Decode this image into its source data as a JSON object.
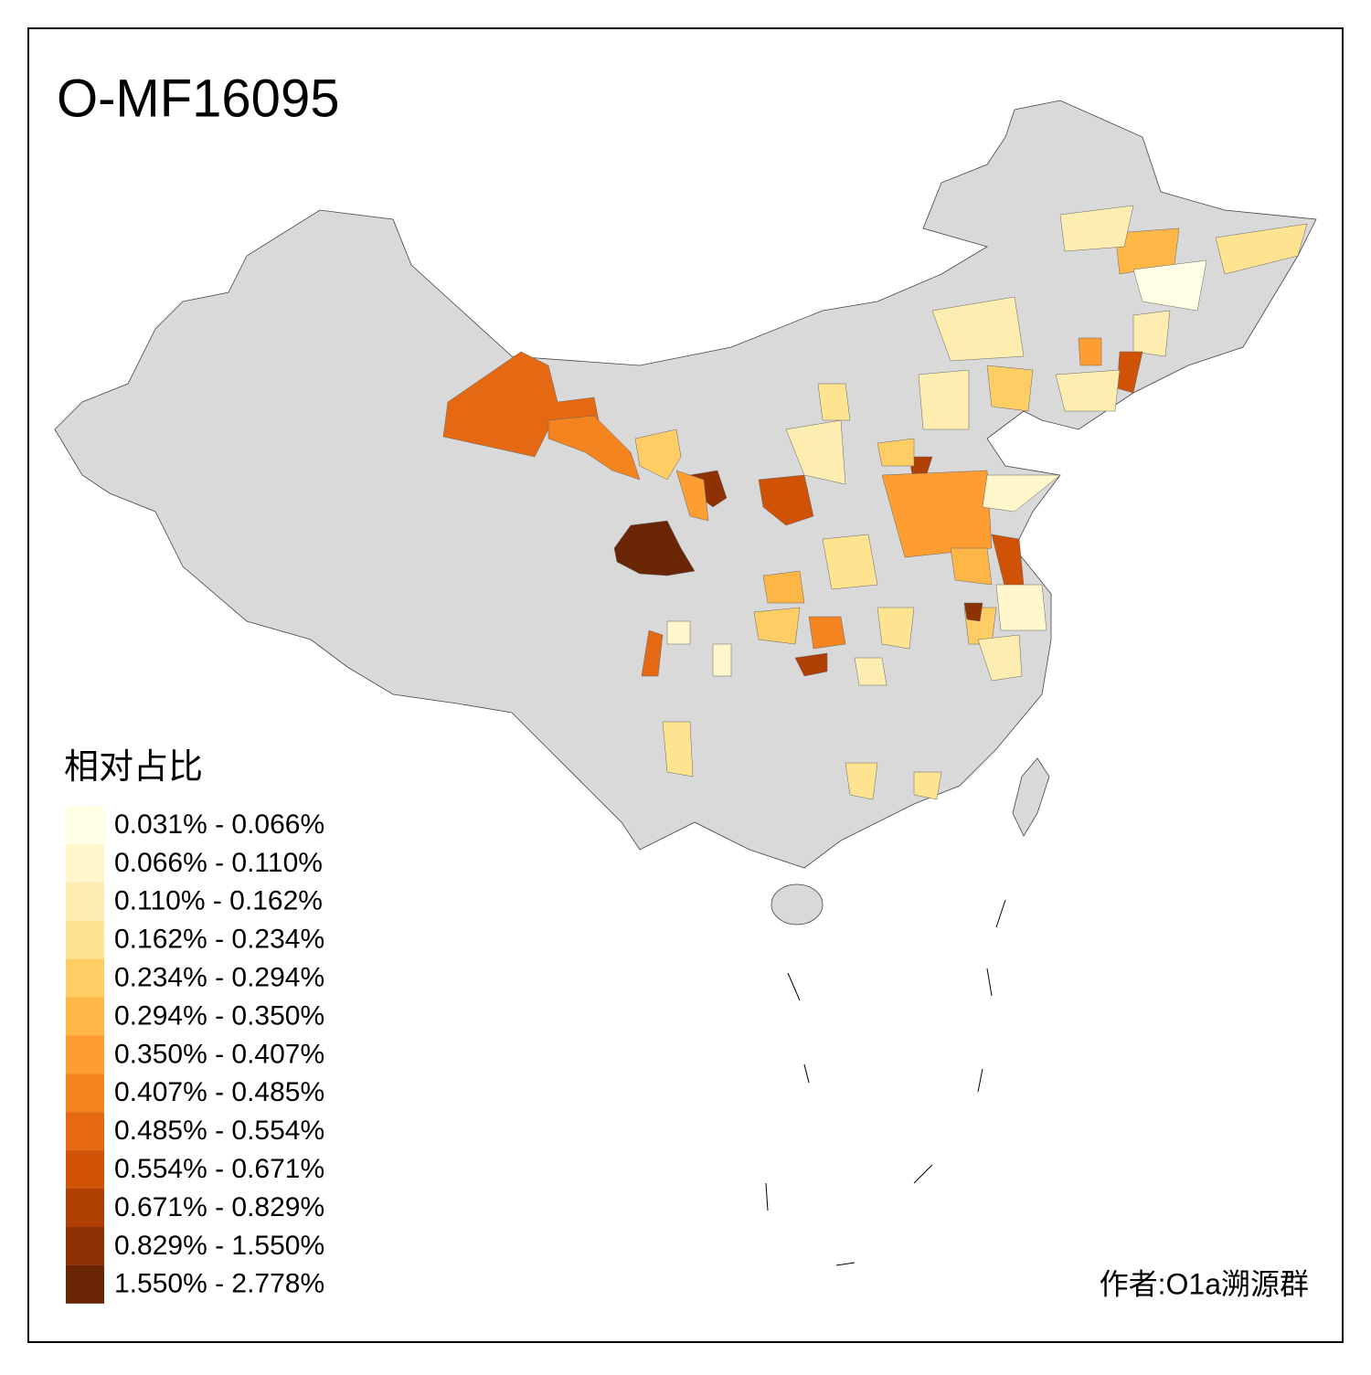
{
  "title": "O-MF16095",
  "legend": {
    "title": "相对占比",
    "items": [
      {
        "label": "0.031% - 0.066%",
        "color": "#ffffe5"
      },
      {
        "label": "0.066% - 0.110%",
        "color": "#fff7cb"
      },
      {
        "label": "0.110% - 0.162%",
        "color": "#feedb0"
      },
      {
        "label": "0.162% - 0.234%",
        "color": "#fee391"
      },
      {
        "label": "0.234% - 0.294%",
        "color": "#fece65"
      },
      {
        "label": "0.294% - 0.350%",
        "color": "#feb746"
      },
      {
        "label": "0.350% - 0.407%",
        "color": "#fd9d32"
      },
      {
        "label": "0.407% - 0.485%",
        "color": "#f4841f"
      },
      {
        "label": "0.485% - 0.554%",
        "color": "#e46912"
      },
      {
        "label": "0.554% - 0.671%",
        "color": "#cf5207"
      },
      {
        "label": "0.671% - 0.829%",
        "color": "#b03f04"
      },
      {
        "label": "0.829% - 1.550%",
        "color": "#8e3104"
      },
      {
        "label": "1.550% - 2.778%",
        "color": "#6a2505"
      }
    ]
  },
  "credit": "作者:O1a溯源群"
}
